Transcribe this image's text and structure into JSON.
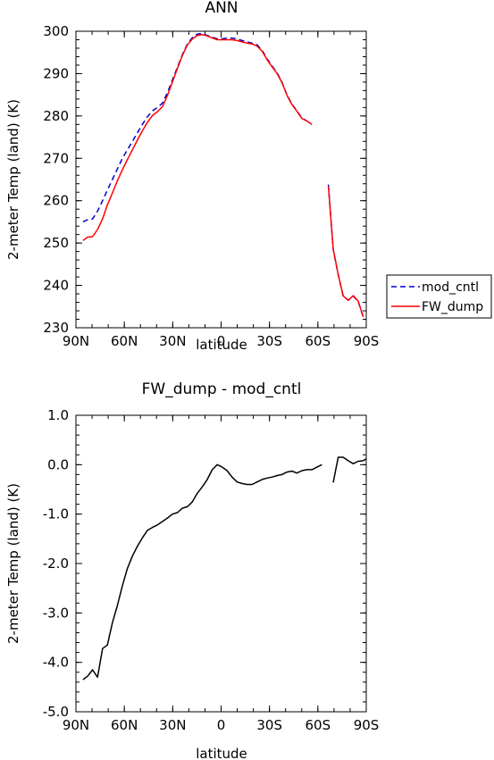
{
  "chart_data": [
    {
      "type": "line",
      "title": "ANN",
      "xlabel": "latitude",
      "ylabel": "2-meter Temp (land) (K)",
      "x_reversed": true,
      "xlim": [
        -90,
        90
      ],
      "ylim": [
        230,
        300
      ],
      "xticks": [
        {
          "x": 90,
          "label": "90N"
        },
        {
          "x": 60,
          "label": "60N"
        },
        {
          "x": 30,
          "label": "30N"
        },
        {
          "x": 0,
          "label": "0"
        },
        {
          "x": -30,
          "label": "30S"
        },
        {
          "x": -60,
          "label": "60S"
        },
        {
          "x": -90,
          "label": "90S"
        }
      ],
      "yticks": [
        {
          "y": 300,
          "label": "300"
        },
        {
          "y": 290,
          "label": "290"
        },
        {
          "y": 280,
          "label": "280"
        },
        {
          "y": 270,
          "label": "270"
        },
        {
          "y": 260,
          "label": "260"
        },
        {
          "y": 250,
          "label": "250"
        },
        {
          "y": 240,
          "label": "240"
        },
        {
          "y": 230,
          "label": "230"
        }
      ],
      "legend": {
        "position": "right",
        "entries": [
          "mod_cntl",
          "FW_dump"
        ]
      },
      "series": [
        {
          "name": "mod_cntl",
          "color": "#0000cc",
          "dash": "dashed",
          "segments": [
            [
              [
                85.6,
                255.0
              ],
              [
                82.8,
                255.5
              ],
              [
                79.7,
                255.7
              ],
              [
                76.6,
                257.5
              ],
              [
                73.5,
                260.0
              ],
              [
                70.5,
                262.5
              ],
              [
                67.4,
                265.0
              ],
              [
                64.3,
                267.5
              ],
              [
                61.2,
                270.0
              ],
              [
                58.1,
                272.0
              ],
              [
                55.0,
                274.0
              ],
              [
                51.9,
                276.0
              ],
              [
                48.8,
                278.0
              ],
              [
                45.7,
                279.8
              ],
              [
                42.6,
                281.2
              ],
              [
                39.5,
                282.0
              ],
              [
                36.4,
                283.0
              ],
              [
                33.3,
                285.5
              ],
              [
                30.2,
                288.5
              ],
              [
                27.1,
                291.5
              ],
              [
                24.0,
                294.5
              ],
              [
                20.9,
                297.0
              ],
              [
                17.8,
                298.5
              ],
              [
                14.8,
                299.3
              ],
              [
                11.7,
                299.5
              ],
              [
                8.6,
                299.0
              ],
              [
                5.5,
                298.6
              ],
              [
                2.4,
                298.2
              ],
              [
                -0.7,
                298.2
              ],
              [
                -3.7,
                298.4
              ],
              [
                -6.8,
                298.4
              ],
              [
                -9.9,
                298.2
              ],
              [
                -13.0,
                297.8
              ],
              [
                -16.1,
                297.5
              ],
              [
                -19.2,
                297.2
              ],
              [
                -22.3,
                296.8
              ],
              [
                -25.4,
                295.5
              ],
              [
                -28.5,
                293.5
              ],
              [
                -31.6,
                291.8
              ],
              [
                -34.7,
                290.2
              ],
              [
                -37.7,
                288.0
              ],
              [
                -40.8,
                285.0
              ],
              [
                -43.9,
                282.8
              ],
              [
                -47.0,
                281.2
              ],
              [
                -50.1,
                279.5
              ],
              [
                -53.2,
                278.8
              ],
              [
                -56.3,
                278.0
              ]
            ],
            [
              [
                -66.5,
                263.8
              ],
              [
                -69.5,
                248.5
              ],
              [
                -72.6,
                242.5
              ],
              [
                -75.7,
                237.5
              ],
              [
                -78.8,
                236.5
              ],
              [
                -81.9,
                237.5
              ],
              [
                -85.0,
                236.2
              ],
              [
                -88.1,
                232.5
              ]
            ]
          ]
        },
        {
          "name": "FW_dump",
          "color": "#ff0000",
          "dash": "solid",
          "segments": [
            [
              [
                85.6,
                250.6
              ],
              [
                82.8,
                251.4
              ],
              [
                79.7,
                251.5
              ],
              [
                76.6,
                253.2
              ],
              [
                73.5,
                255.7
              ],
              [
                70.5,
                259.0
              ],
              [
                67.4,
                261.8
              ],
              [
                64.3,
                264.7
              ],
              [
                61.2,
                267.3
              ],
              [
                58.1,
                269.7
              ],
              [
                55.0,
                272.0
              ],
              [
                51.9,
                274.3
              ],
              [
                48.8,
                276.5
              ],
              [
                45.7,
                278.5
              ],
              [
                42.6,
                280.1
              ],
              [
                39.5,
                281.0
              ],
              [
                36.4,
                282.2
              ],
              [
                33.3,
                284.8
              ],
              [
                30.2,
                288.0
              ],
              [
                27.1,
                291.2
              ],
              [
                24.0,
                294.3
              ],
              [
                20.9,
                296.8
              ],
              [
                17.8,
                298.2
              ],
              [
                14.8,
                299.0
              ],
              [
                11.7,
                299.2
              ],
              [
                8.6,
                298.9
              ],
              [
                5.5,
                298.4
              ],
              [
                2.4,
                298.0
              ],
              [
                -0.7,
                298.0
              ],
              [
                -3.7,
                298.0
              ],
              [
                -6.8,
                298.0
              ],
              [
                -9.9,
                297.8
              ],
              [
                -13.0,
                297.5
              ],
              [
                -16.1,
                297.2
              ],
              [
                -19.2,
                297.0
              ],
              [
                -22.3,
                296.5
              ],
              [
                -25.4,
                295.3
              ],
              [
                -28.5,
                293.3
              ],
              [
                -31.6,
                291.6
              ],
              [
                -34.7,
                290.0
              ],
              [
                -37.7,
                287.9
              ],
              [
                -40.8,
                284.9
              ],
              [
                -43.9,
                282.7
              ],
              [
                -47.0,
                281.1
              ],
              [
                -50.1,
                279.4
              ],
              [
                -53.2,
                278.8
              ],
              [
                -56.3,
                278.0
              ]
            ],
            [
              [
                -66.5,
                263.4
              ],
              [
                -69.5,
                248.6
              ],
              [
                -72.6,
                242.6
              ],
              [
                -75.7,
                237.5
              ],
              [
                -78.8,
                236.5
              ],
              [
                -81.9,
                237.6
              ],
              [
                -85.0,
                236.3
              ],
              [
                -88.1,
                232.6
              ]
            ]
          ]
        }
      ]
    },
    {
      "type": "line",
      "title": "FW_dump - mod_cntl",
      "xlabel": "latitude",
      "ylabel": "2-meter Temp (land) (K)",
      "x_reversed": true,
      "xlim": [
        -90,
        90
      ],
      "ylim": [
        -5,
        1
      ],
      "xticks": [
        {
          "x": 90,
          "label": "90N"
        },
        {
          "x": 60,
          "label": "60N"
        },
        {
          "x": 30,
          "label": "30N"
        },
        {
          "x": 0,
          "label": "0"
        },
        {
          "x": -30,
          "label": "30S"
        },
        {
          "x": -60,
          "label": "60S"
        },
        {
          "x": -90,
          "label": "90S"
        }
      ],
      "yticks": [
        {
          "y": 1,
          "label": "1.0"
        },
        {
          "y": 0,
          "label": "0.0"
        },
        {
          "y": -1,
          "label": "-1.0"
        },
        {
          "y": -2,
          "label": "-2.0"
        },
        {
          "y": -3,
          "label": "-3.0"
        },
        {
          "y": -4,
          "label": "-4.0"
        },
        {
          "y": -5,
          "label": "-5.0"
        }
      ],
      "series": [
        {
          "color": "#000000",
          "dash": "solid",
          "segments": [
            [
              [
                85.6,
                -4.35
              ],
              [
                82.8,
                -4.28
              ],
              [
                79.7,
                -4.15
              ],
              [
                76.6,
                -4.3
              ],
              [
                73.5,
                -3.72
              ],
              [
                70.5,
                -3.65
              ],
              [
                67.4,
                -3.2
              ],
              [
                64.3,
                -2.85
              ],
              [
                61.2,
                -2.45
              ],
              [
                58.1,
                -2.1
              ],
              [
                55.0,
                -1.85
              ],
              [
                51.9,
                -1.65
              ],
              [
                48.8,
                -1.48
              ],
              [
                45.7,
                -1.33
              ],
              [
                42.6,
                -1.27
              ],
              [
                39.5,
                -1.22
              ],
              [
                36.4,
                -1.15
              ],
              [
                33.3,
                -1.08
              ],
              [
                30.2,
                -1.0
              ],
              [
                27.1,
                -0.97
              ],
              [
                24.0,
                -0.88
              ],
              [
                20.9,
                -0.85
              ],
              [
                17.8,
                -0.75
              ],
              [
                14.8,
                -0.58
              ],
              [
                11.7,
                -0.45
              ],
              [
                8.6,
                -0.3
              ],
              [
                5.5,
                -0.1
              ],
              [
                2.4,
                0.0
              ],
              [
                -0.7,
                -0.05
              ],
              [
                -3.7,
                -0.12
              ],
              [
                -6.8,
                -0.25
              ],
              [
                -9.9,
                -0.35
              ],
              [
                -13.0,
                -0.38
              ],
              [
                -16.1,
                -0.4
              ],
              [
                -19.2,
                -0.4
              ],
              [
                -22.3,
                -0.35
              ],
              [
                -25.4,
                -0.3
              ],
              [
                -28.5,
                -0.27
              ],
              [
                -31.6,
                -0.25
              ],
              [
                -34.7,
                -0.22
              ],
              [
                -37.7,
                -0.2
              ],
              [
                -40.8,
                -0.15
              ],
              [
                -43.9,
                -0.13
              ],
              [
                -47.0,
                -0.17
              ],
              [
                -50.1,
                -0.12
              ],
              [
                -53.2,
                -0.1
              ],
              [
                -56.3,
                -0.1
              ],
              [
                -59.4,
                -0.05
              ],
              [
                -62.5,
                0.0
              ]
            ],
            [
              [
                -69.5,
                -0.36
              ],
              [
                -72.6,
                0.15
              ],
              [
                -75.7,
                0.15
              ],
              [
                -78.8,
                0.08
              ],
              [
                -81.9,
                0.02
              ],
              [
                -85.0,
                0.07
              ],
              [
                -88.1,
                0.08
              ],
              [
                -91.0,
                0.12
              ]
            ]
          ]
        }
      ]
    }
  ]
}
